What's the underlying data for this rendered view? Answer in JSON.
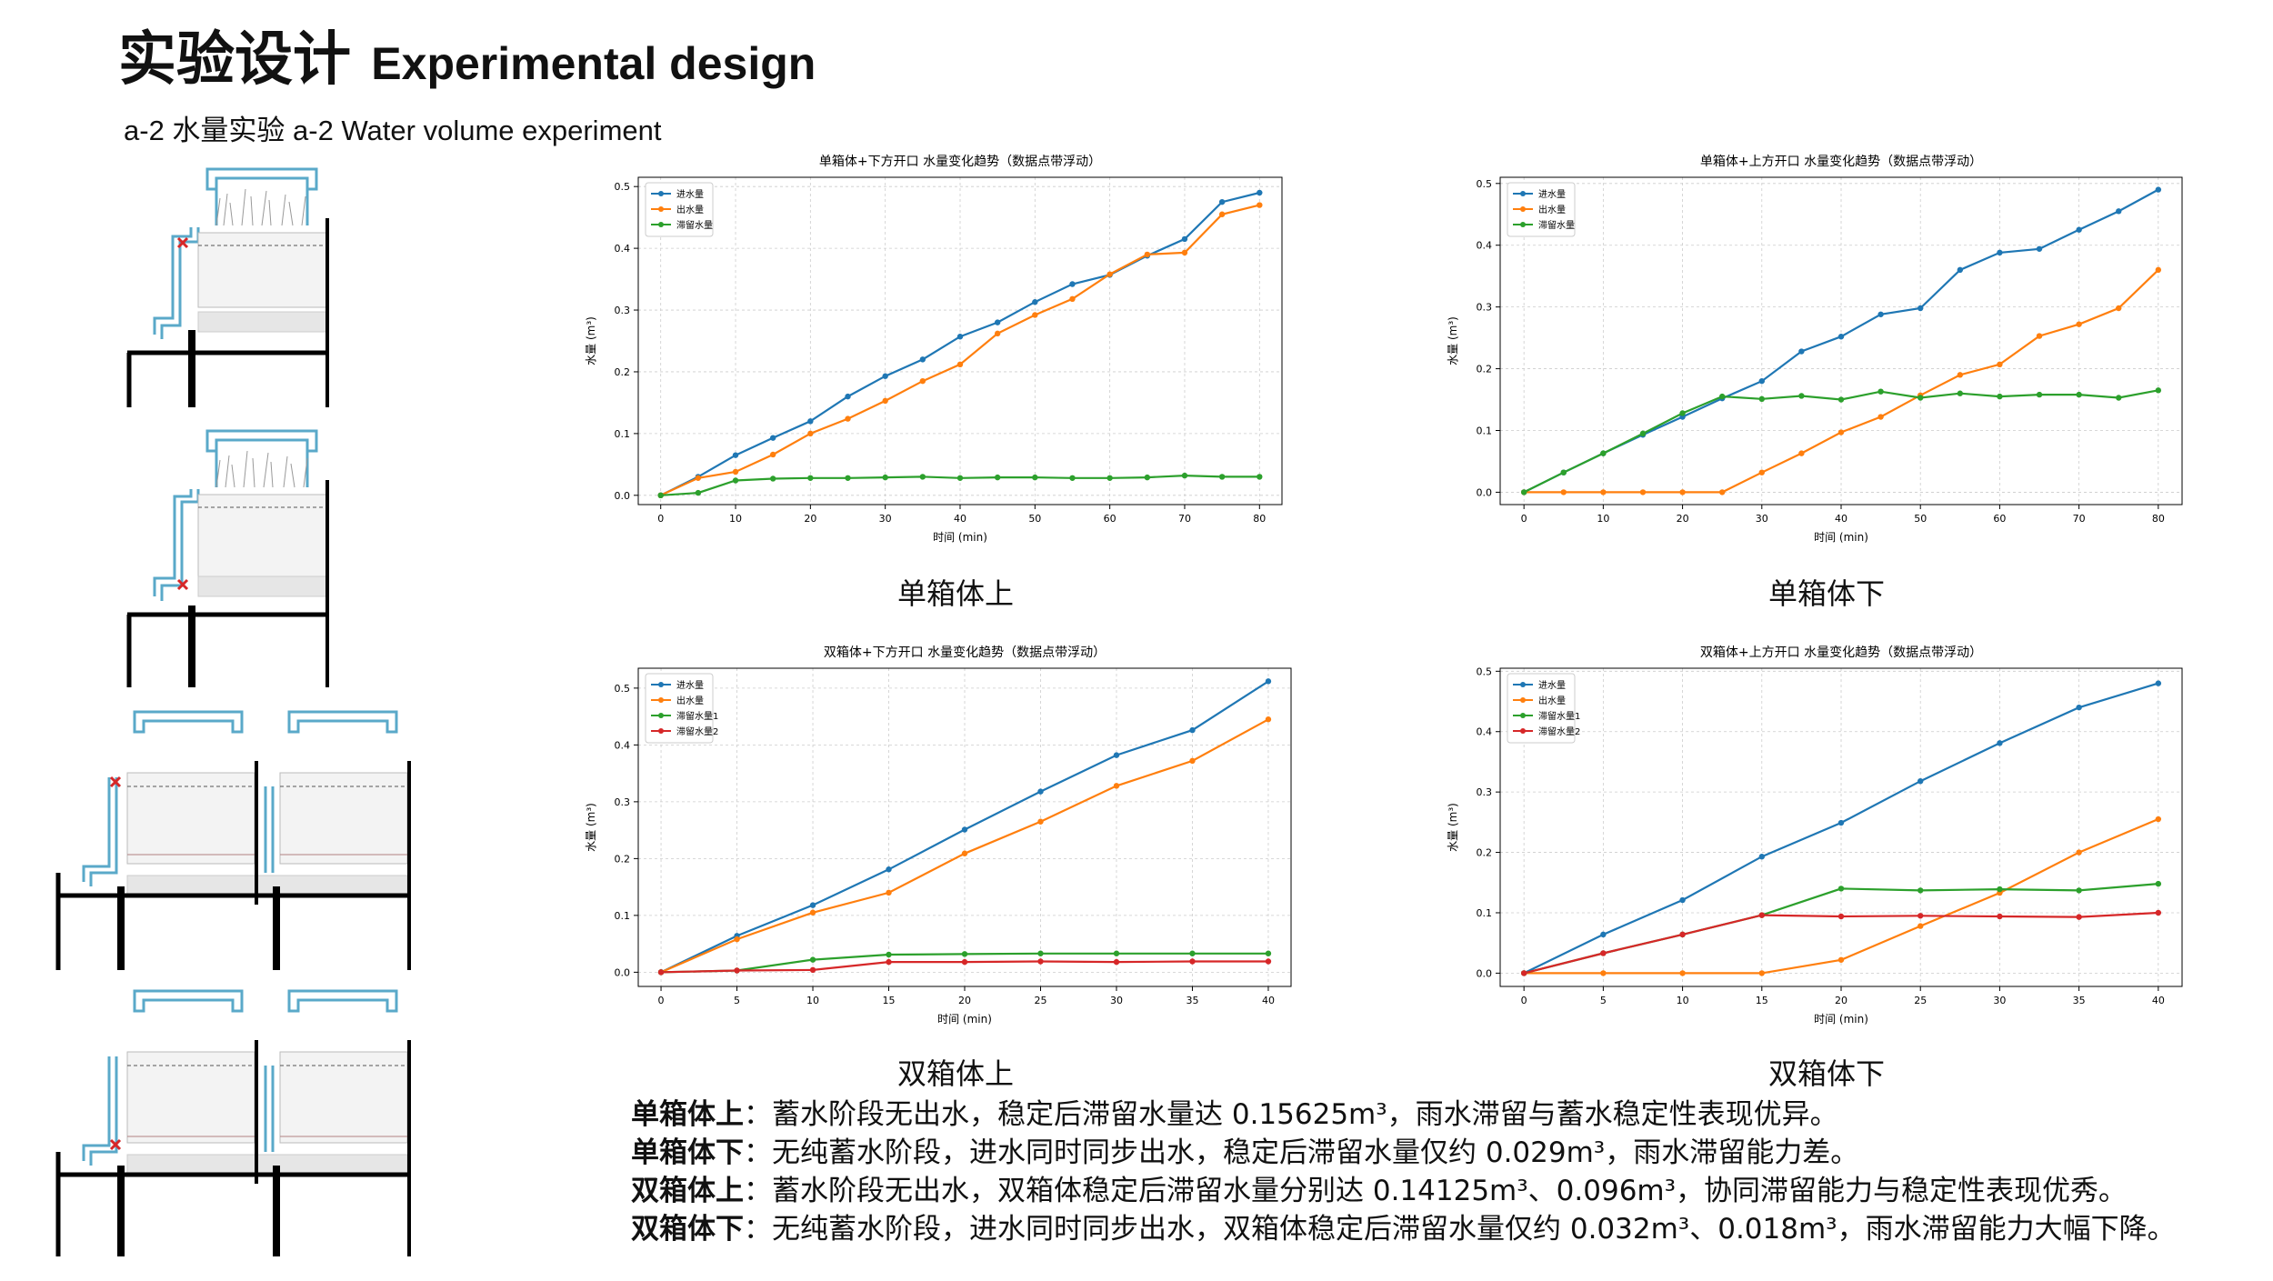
{
  "header": {
    "title_cn": "实验设计",
    "title_en": "Experimental design",
    "subtitle": "a-2 水量实验 a-2 Water volume experiment"
  },
  "captions": [
    "单箱体上",
    "单箱体下",
    "双箱体上",
    "双箱体下"
  ],
  "notes": [
    {
      "label": "单箱体上",
      "text": "：蓄水阶段无出水，稳定后滞留水量达 0.15625m³，雨水滞留与蓄水稳定性表现优异。"
    },
    {
      "label": "单箱体下",
      "text": "：无纯蓄水阶段，进水同时同步出水，稳定后滞留水量仅约 0.029m³，雨水滞留能力差。"
    },
    {
      "label": "双箱体上",
      "text": "：蓄水阶段无出水，双箱体稳定后滞留水量分别达 0.14125m³、0.096m³，协同滞留能力与稳定性表现优秀。"
    },
    {
      "label": "双箱体下",
      "text": "：无纯蓄水阶段，进水同时同步出水，双箱体稳定后滞留水量仅约 0.032m³、0.018m³，雨水滞留能力大幅下降。"
    }
  ],
  "colors": {
    "blue": "#1f77b4",
    "orange": "#ff7f0e",
    "green": "#2ca02c",
    "red": "#d62728",
    "pipe": "#5aa9c9",
    "mark": "#d62728"
  },
  "chart_data": [
    {
      "type": "line",
      "title": "单箱体+下方开口 水量变化趋势（数据点带浮动）",
      "xlabel": "时间 (min)",
      "ylabel": "水量 (m³)",
      "xlim": [
        -3,
        83
      ],
      "ylim": [
        -0.015,
        0.515
      ],
      "xticks": [
        0,
        10,
        20,
        30,
        40,
        50,
        60,
        70,
        80
      ],
      "yticks": [
        0.0,
        0.1,
        0.2,
        0.3,
        0.4,
        0.5
      ],
      "x": [
        0,
        5,
        10,
        15,
        20,
        25,
        30,
        35,
        40,
        45,
        50,
        55,
        60,
        65,
        70,
        75,
        80
      ],
      "legend": "top-left",
      "grid": true,
      "series": [
        {
          "name": "进水量",
          "color": "#1f77b4",
          "values": [
            0,
            0.03,
            0.065,
            0.093,
            0.12,
            0.16,
            0.193,
            0.22,
            0.257,
            0.28,
            0.313,
            0.342,
            0.357,
            0.388,
            0.415,
            0.475,
            0.49
          ]
        },
        {
          "name": "出水量",
          "color": "#ff7f0e",
          "values": [
            0,
            0.028,
            0.038,
            0.066,
            0.1,
            0.124,
            0.153,
            0.185,
            0.212,
            0.262,
            0.292,
            0.318,
            0.358,
            0.39,
            0.393,
            0.455,
            0.47
          ]
        },
        {
          "name": "滞留水量",
          "color": "#2ca02c",
          "values": [
            0,
            0.004,
            0.024,
            0.027,
            0.028,
            0.028,
            0.029,
            0.03,
            0.028,
            0.029,
            0.029,
            0.028,
            0.028,
            0.029,
            0.032,
            0.03,
            0.03
          ]
        }
      ]
    },
    {
      "type": "line",
      "title": "单箱体+上方开口 水量变化趋势（数据点带浮动）",
      "xlabel": "时间 (min)",
      "ylabel": "水量 (m³)",
      "xlim": [
        -3,
        83
      ],
      "ylim": [
        -0.02,
        0.51
      ],
      "xticks": [
        0,
        10,
        20,
        30,
        40,
        50,
        60,
        70,
        80
      ],
      "yticks": [
        0.0,
        0.1,
        0.2,
        0.3,
        0.4,
        0.5
      ],
      "x": [
        0,
        5,
        10,
        15,
        20,
        25,
        30,
        35,
        40,
        45,
        50,
        55,
        60,
        65,
        70,
        75,
        80
      ],
      "legend": "top-left",
      "grid": true,
      "series": [
        {
          "name": "进水量",
          "color": "#1f77b4",
          "values": [
            0,
            0.032,
            0.063,
            0.093,
            0.122,
            0.152,
            0.18,
            0.228,
            0.252,
            0.288,
            0.298,
            0.36,
            0.388,
            0.394,
            0.425,
            0.455,
            0.49
          ]
        },
        {
          "name": "出水量",
          "color": "#ff7f0e",
          "values": [
            0,
            0,
            0,
            0,
            0,
            0,
            0.032,
            0.063,
            0.097,
            0.122,
            0.157,
            0.19,
            0.207,
            0.253,
            0.272,
            0.298,
            0.36
          ]
        },
        {
          "name": "滞留水量",
          "color": "#2ca02c",
          "values": [
            0,
            0.032,
            0.063,
            0.095,
            0.128,
            0.155,
            0.151,
            0.156,
            0.15,
            0.163,
            0.153,
            0.16,
            0.155,
            0.158,
            0.158,
            0.153,
            0.165
          ]
        }
      ]
    },
    {
      "type": "line",
      "title": "双箱体+下方开口 水量变化趋势（数据点带浮动）",
      "xlabel": "时间 (min)",
      "ylabel": "水量 (m³)",
      "xlim": [
        -1.5,
        41.5
      ],
      "ylim": [
        -0.025,
        0.535
      ],
      "xticks": [
        0,
        5,
        10,
        15,
        20,
        25,
        30,
        35,
        40
      ],
      "yticks": [
        0.0,
        0.1,
        0.2,
        0.3,
        0.4,
        0.5
      ],
      "x": [
        0,
        5,
        10,
        15,
        20,
        25,
        30,
        35,
        40
      ],
      "legend": "top-left",
      "grid": true,
      "series": [
        {
          "name": "进水量",
          "color": "#1f77b4",
          "values": [
            0,
            0.064,
            0.118,
            0.181,
            0.251,
            0.318,
            0.382,
            0.426,
            0.512
          ]
        },
        {
          "name": "出水量",
          "color": "#ff7f0e",
          "values": [
            0,
            0.058,
            0.105,
            0.14,
            0.209,
            0.265,
            0.328,
            0.372,
            0.445
          ]
        },
        {
          "name": "滞留水量1",
          "color": "#2ca02c",
          "values": [
            0,
            0.003,
            0.022,
            0.031,
            0.032,
            0.033,
            0.033,
            0.033,
            0.033
          ]
        },
        {
          "name": "滞留水量2",
          "color": "#d62728",
          "values": [
            0,
            0.003,
            0.004,
            0.018,
            0.018,
            0.019,
            0.018,
            0.019,
            0.019
          ]
        }
      ]
    },
    {
      "type": "line",
      "title": "双箱体+上方开口 水量变化趋势（数据点带浮动）",
      "xlabel": "时间 (min)",
      "ylabel": "水量 (m³)",
      "xlim": [
        -1.5,
        41.5
      ],
      "ylim": [
        -0.022,
        0.505
      ],
      "xticks": [
        0,
        5,
        10,
        15,
        20,
        25,
        30,
        35,
        40
      ],
      "yticks": [
        0.0,
        0.1,
        0.2,
        0.3,
        0.4,
        0.5
      ],
      "x": [
        0,
        5,
        10,
        15,
        20,
        25,
        30,
        35,
        40
      ],
      "legend": "top-left",
      "grid": true,
      "series": [
        {
          "name": "进水量",
          "color": "#1f77b4",
          "values": [
            0,
            0.064,
            0.121,
            0.193,
            0.249,
            0.318,
            0.381,
            0.44,
            0.48
          ]
        },
        {
          "name": "出水量",
          "color": "#ff7f0e",
          "values": [
            0,
            0,
            0,
            0,
            0.022,
            0.078,
            0.133,
            0.2,
            0.255
          ]
        },
        {
          "name": "滞留水量1",
          "color": "#2ca02c",
          "values": [
            0,
            0.033,
            0.064,
            0.096,
            0.14,
            0.137,
            0.139,
            0.137,
            0.148
          ]
        },
        {
          "name": "滞留水量2",
          "color": "#d62728",
          "values": [
            0,
            0.033,
            0.064,
            0.096,
            0.094,
            0.095,
            0.094,
            0.093,
            0.1
          ]
        }
      ]
    }
  ]
}
